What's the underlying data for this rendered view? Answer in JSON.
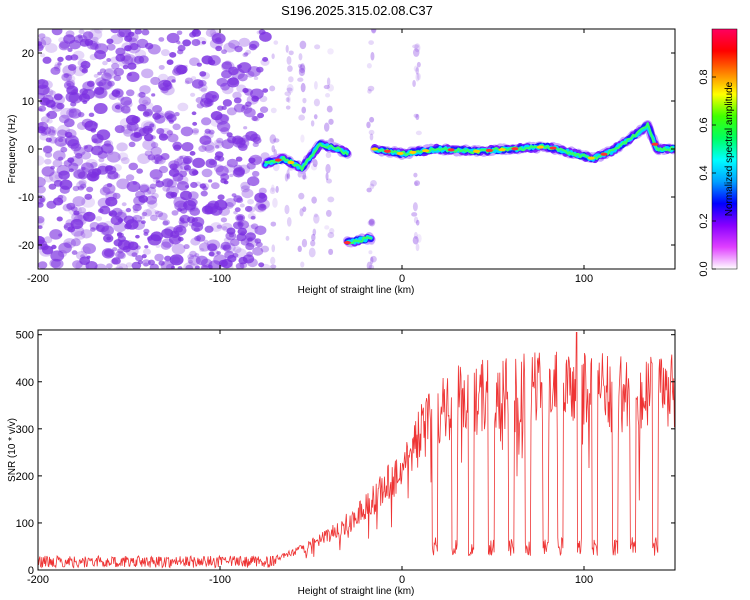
{
  "title": "S196.2025.315.02.08.C37",
  "colors": {
    "snr_line": "#ee3333",
    "frame": "#000000",
    "scatter_purple": "#7b2fe0"
  },
  "chart_data": [
    {
      "type": "heatmap",
      "xlabel": "Height of straight line (km)",
      "ylabel": "Frequency (Hz)",
      "xlim": [
        -200,
        150
      ],
      "ylim": [
        -25,
        25
      ],
      "x_ticks": [
        -200,
        -100,
        0,
        100
      ],
      "x_tick_labels": [
        "-200",
        "-100",
        "0",
        "100"
      ],
      "y_ticks": [
        -20,
        -10,
        0,
        10,
        20
      ],
      "y_tick_labels": [
        "-20",
        "-10",
        "0",
        "10",
        "20"
      ],
      "colorbar": {
        "label": "Normalized spectral amplitude",
        "range": [
          0,
          1
        ],
        "ticks": [
          0.0,
          0.2,
          0.4,
          0.6,
          0.8
        ],
        "tick_labels": [
          "0.0",
          "0.2",
          "0.4",
          "0.6",
          "0.8"
        ],
        "colormap": [
          "#ffffff",
          "#e040ff",
          "#8800ff",
          "#0000ff",
          "#00a0ff",
          "#00ffff",
          "#00ff60",
          "#40ff00",
          "#ffff00",
          "#ff8000",
          "#ff0000",
          "#ff0060"
        ]
      },
      "traces": [
        {
          "name": "main_tone",
          "x": [
            -15,
            0,
            20,
            40,
            60,
            80,
            95,
            105,
            115,
            125,
            135,
            140,
            150
          ],
          "y": [
            0,
            -1,
            0,
            -0.5,
            0,
            0.5,
            -1,
            -2,
            -0.5,
            2,
            5,
            0,
            0
          ]
        },
        {
          "name": "offset_tone",
          "x": [
            -30,
            -17
          ],
          "y": [
            -19.5,
            -18.5
          ]
        },
        {
          "name": "low_cluster",
          "x": [
            -75,
            -65,
            -55,
            -45,
            -35,
            -30
          ],
          "y": [
            -3,
            -2,
            -4,
            1,
            0,
            -1
          ]
        }
      ]
    },
    {
      "type": "line",
      "xlabel": "Height of straight line (km)",
      "ylabel": "SNR (10 * v/v)",
      "xlim": [
        -200,
        150
      ],
      "ylim": [
        0,
        510
      ],
      "x_ticks": [
        -200,
        -100,
        0,
        100
      ],
      "x_tick_labels": [
        "-200",
        "-100",
        "0",
        "100"
      ],
      "y_ticks": [
        0,
        100,
        200,
        300,
        400,
        500
      ],
      "y_tick_labels": [
        "0",
        "100",
        "200",
        "300",
        "400",
        "500"
      ],
      "noise_floor": {
        "x_range": [
          -200,
          -70
        ],
        "value_range": [
          5,
          30
        ]
      },
      "envelope": [
        {
          "x": -75,
          "y": 20
        },
        {
          "x": -60,
          "y": 40
        },
        {
          "x": -45,
          "y": 70
        },
        {
          "x": -30,
          "y": 110
        },
        {
          "x": -15,
          "y": 170
        },
        {
          "x": 0,
          "y": 240
        },
        {
          "x": 10,
          "y": 320
        },
        {
          "x": 20,
          "y": 380
        },
        {
          "x": 30,
          "y": 400
        },
        {
          "x": 50,
          "y": 410
        },
        {
          "x": 70,
          "y": 420
        },
        {
          "x": 90,
          "y": 430
        },
        {
          "x": 110,
          "y": 420
        },
        {
          "x": 130,
          "y": 410
        },
        {
          "x": 150,
          "y": 420
        }
      ],
      "dropouts_x": [
        18,
        29,
        38,
        49,
        60,
        69,
        79,
        87,
        97,
        106,
        117,
        127,
        139
      ],
      "dropout_level": 50,
      "peak": {
        "x": 96,
        "y": 505
      }
    }
  ]
}
